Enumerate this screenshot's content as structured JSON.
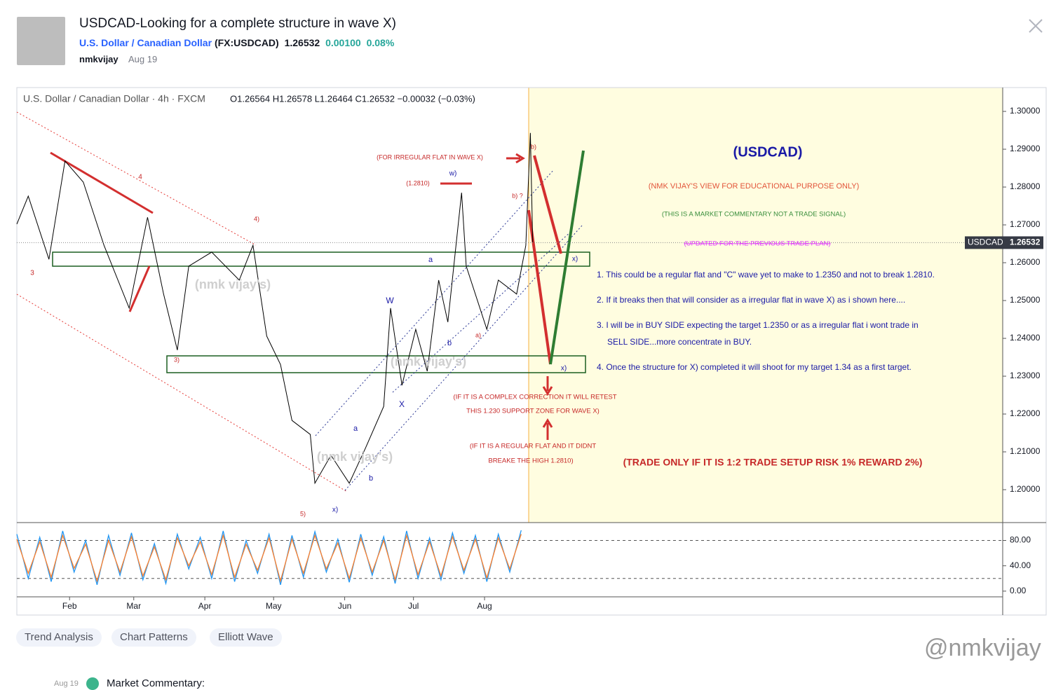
{
  "header": {
    "title": "USDCAD-Looking for a complete structure in wave X)",
    "symbol_name": "U.S. Dollar / Canadian Dollar",
    "symbol_code": "(FX:USDCAD)",
    "price": "1.26532",
    "change": "0.00100",
    "change_pct": "0.08%",
    "author": "nmkvijay",
    "date": "Aug 19"
  },
  "chart_data": [
    {
      "type": "line",
      "legend_title": "U.S. Dollar / Canadian Dollar · 4h · FXCM",
      "ohlc": "O1.26564 H1.26578 L1.26464 C1.26532 −0.00032 (−0.03%)",
      "x": [
        9,
        14,
        23,
        30,
        38,
        47,
        58,
        66,
        73,
        79,
        84,
        94,
        106,
        112,
        118,
        124,
        129,
        137,
        139,
        146,
        154,
        161,
        169,
        172,
        177,
        183,
        188,
        193,
        197,
        203,
        205,
        214,
        219,
        227,
        231,
        233,
        234
      ],
      "series": [
        {
          "name": "USDCAD",
          "color": "#000000",
          "values": [
            1.2702,
            1.2776,
            1.2609,
            1.2869,
            1.2813,
            1.2646,
            1.248,
            1.272,
            1.2517,
            1.2369,
            1.2591,
            1.2628,
            1.2554,
            1.2646,
            1.2406,
            1.2331,
            1.2183,
            1.2146,
            1.2017,
            1.2091,
            1.2017,
            1.2109,
            1.222,
            1.248,
            1.2276,
            1.2424,
            1.2313,
            1.2554,
            1.2443,
            1.2785,
            1.2591,
            1.2424,
            1.2554,
            1.2517,
            1.2646,
            1.2943,
            1.2653
          ]
        }
      ],
      "last_price_label": "1.26532",
      "xlim": [
        9,
        439
      ],
      "xticks": [
        {
          "value": 32,
          "label": "Feb"
        },
        {
          "value": 60,
          "label": "Mar"
        },
        {
          "value": 91,
          "label": "Apr"
        },
        {
          "value": 121,
          "label": "May"
        },
        {
          "value": 152,
          "label": "Jun"
        },
        {
          "value": 182,
          "label": "Jul"
        },
        {
          "value": 213,
          "label": "Aug"
        }
      ],
      "ylim": [
        1.1913,
        1.3063
      ],
      "yticks": [
        {
          "value": 1.2,
          "label": "1.20000"
        },
        {
          "value": 1.21,
          "label": "1.21000"
        },
        {
          "value": 1.22,
          "label": "1.22000"
        },
        {
          "value": 1.23,
          "label": "1.23000"
        },
        {
          "value": 1.24,
          "label": "1.24000"
        },
        {
          "value": 1.25,
          "label": "1.25000"
        },
        {
          "value": 1.26,
          "label": "1.26000"
        },
        {
          "value": 1.27,
          "label": "1.27000"
        },
        {
          "value": 1.28,
          "label": "1.28000"
        },
        {
          "value": 1.29,
          "label": "1.29000"
        },
        {
          "value": 1.3,
          "label": "1.30000"
        }
      ],
      "annotations": [
        {
          "text": "(FOR IRREGULAR FLAT IN WAVE X)",
          "color": "#c62828"
        },
        {
          "text": "(1.2810)",
          "color": "#c62828"
        },
        {
          "text": "w)",
          "color": "#1a1aa6"
        },
        {
          "text": "b) ?",
          "color": "#c62828"
        },
        {
          "text": "b)",
          "color": "#c62828"
        },
        {
          "text": "(USDCAD)",
          "color": "#1a1aa6"
        },
        {
          "text": "(NMK VIJAY'S VIEW FOR EDUCATIONAL PURPOSE ONLY)",
          "color": "#e2543a"
        },
        {
          "text": "(THIS IS A MARKET COMMENTARY NOT A TRADE SIGNAL)",
          "color": "#388e3c"
        },
        {
          "text": "(UPDATED FOR THE PREVIOUS TRADE PLAN)",
          "color": "#e040fb"
        },
        {
          "text": "1. This could be a regular flat and \"C\" wave yet to make to 1.2350 and not to break 1.2810.",
          "color": "#1a1aa6"
        },
        {
          "text": "2. If it breaks then that will consider as a irregular flat in wave X) as i shown here....",
          "color": "#1a1aa6"
        },
        {
          "text": "3. I will be in BUY SIDE expecting the target 1.2350 or as a irregular flat i wont trade in",
          "color": "#1a1aa6"
        },
        {
          "text": "SELL SIDE...more concentrate in BUY.",
          "color": "#1a1aa6"
        },
        {
          "text": "4. Once the structure for X) completed it will shoot for my target 1.34 as a first target.",
          "color": "#1a1aa6"
        },
        {
          "text": "(IF IT IS A COMPLEX CORRECTION IT WILL RETEST",
          "color": "#c62828"
        },
        {
          "text": "THIS 1.230 SUPPORT ZONE FOR WAVE X)",
          "color": "#c62828"
        },
        {
          "text": "(IF IT IS A REGULAR FLAT AND IT DIDNT",
          "color": "#c62828"
        },
        {
          "text": "BREAKE THE HIGH 1.2810)",
          "color": "#c62828"
        },
        {
          "text": "(TRADE ONLY IF IT IS 1:2 TRADE SETUP RISK 1% REWARD 2%)",
          "color": "#c62828"
        },
        {
          "text": "x)",
          "color": "#1a1aa6"
        },
        {
          "text": "x)",
          "color": "#1a1aa6"
        },
        {
          "text": "4",
          "color": "#c62828"
        },
        {
          "text": "4)",
          "color": "#c62828"
        },
        {
          "text": "3",
          "color": "#c62828"
        },
        {
          "text": "3)",
          "color": "#c62828"
        },
        {
          "text": "5)",
          "color": "#c62828"
        },
        {
          "text": "x)",
          "color": "#1a1aa6"
        },
        {
          "text": "a",
          "color": "#1a1aa6"
        },
        {
          "text": "W",
          "color": "#1a1aa6"
        },
        {
          "text": "b",
          "color": "#1a1aa6"
        },
        {
          "text": "a)",
          "color": "#c62828"
        },
        {
          "text": "X",
          "color": "#1a1aa6"
        },
        {
          "text": "a",
          "color": "#1a1aa6"
        },
        {
          "text": "b",
          "color": "#1a1aa6"
        },
        {
          "text": "(nmk vijay's)",
          "color": "#cfcfcf"
        },
        {
          "text": "(nmk vijay's)",
          "color": "#cfcfcf"
        },
        {
          "text": "(nmk vijay's)",
          "color": "#cfcfcf"
        }
      ]
    },
    {
      "type": "line",
      "x": [
        9,
        14,
        19,
        24,
        29,
        34,
        39,
        44,
        49,
        54,
        59,
        64,
        69,
        74,
        79,
        84,
        89,
        94,
        99,
        104,
        109,
        114,
        119,
        124,
        129,
        134,
        139,
        144,
        149,
        154,
        159,
        164,
        169,
        174,
        179,
        184,
        189,
        194,
        199,
        204,
        209,
        214,
        219,
        224,
        229
      ],
      "series": [
        {
          "color": "#2196f3",
          "values": [
            90,
            20,
            85,
            15,
            95,
            30,
            80,
            10,
            88,
            25,
            92,
            18,
            75,
            12,
            90,
            35,
            85,
            20,
            95,
            15,
            80,
            28,
            90,
            10,
            88,
            22,
            94,
            30,
            82,
            14,
            90,
            25,
            86,
            12,
            95,
            20,
            84,
            18,
            92,
            28,
            88,
            15,
            90,
            30,
            96
          ]
        },
        {
          "color": "#ff7f2a",
          "values": [
            82,
            28,
            78,
            22,
            88,
            36,
            74,
            16,
            80,
            30,
            86,
            24,
            70,
            18,
            84,
            40,
            78,
            26,
            88,
            22,
            74,
            33,
            84,
            16,
            82,
            28,
            88,
            35,
            76,
            20,
            84,
            30,
            80,
            18,
            88,
            26,
            78,
            24,
            86,
            33,
            82,
            21,
            84,
            35,
            90
          ]
        }
      ],
      "xlim": [
        9,
        439
      ],
      "ylim": [
        -9,
        106
      ],
      "yticks": [
        {
          "value": 0,
          "label": "0.00"
        },
        {
          "value": 40,
          "label": "40.00"
        },
        {
          "value": 80,
          "label": "80.00"
        }
      ],
      "levels": [
        80,
        20
      ]
    }
  ],
  "tags": [
    "Trend Analysis",
    "Chart Patterns",
    "Elliott Wave"
  ],
  "watermark": "@nmkvijay",
  "comment": {
    "date": "Aug 19",
    "title": "Market Commentary:"
  }
}
